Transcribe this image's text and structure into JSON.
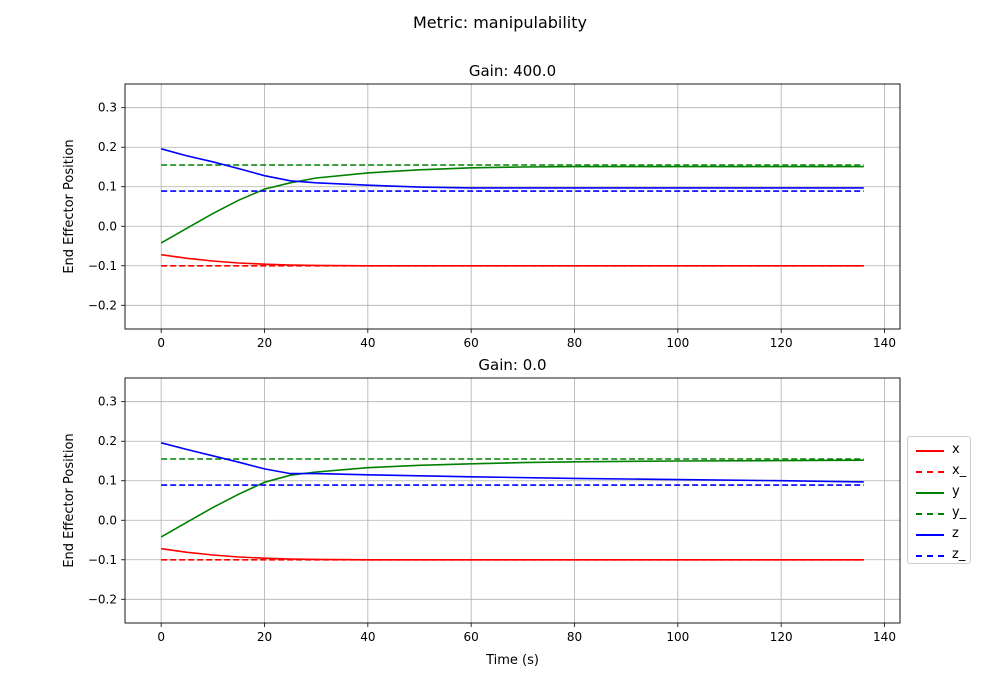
{
  "suptitle": "Metric: manipulability",
  "colors": {
    "x": "#ff0000",
    "y": "#008000",
    "z": "#0000ff",
    "grid": "#b0b0b0"
  },
  "legend": {
    "placement": "outside-right",
    "entries": [
      {
        "label": "x",
        "color": "#ff0000",
        "style": "solid"
      },
      {
        "label": "x_",
        "color": "#ff0000",
        "style": "dashed"
      },
      {
        "label": "y",
        "color": "#008000",
        "style": "solid"
      },
      {
        "label": "y_",
        "color": "#008000",
        "style": "dashed"
      },
      {
        "label": "z",
        "color": "#0000ff",
        "style": "solid"
      },
      {
        "label": "z_",
        "color": "#0000ff",
        "style": "dashed"
      }
    ]
  },
  "chart_data": [
    {
      "type": "line",
      "title": "Gain: 400.0",
      "xlabel": "",
      "ylabel": "End Effector Position",
      "xlim": [
        -7,
        143
      ],
      "ylim": [
        -0.26,
        0.36
      ],
      "xticks": [
        0,
        20,
        40,
        60,
        80,
        100,
        120,
        140
      ],
      "xtick_labels": [
        "0",
        "20",
        "40",
        "60",
        "80",
        "100",
        "120",
        "140"
      ],
      "yticks": [
        -0.2,
        -0.1,
        0.0,
        0.1,
        0.2,
        0.3
      ],
      "ytick_labels": [
        "−0.2",
        "−0.1",
        "0.0",
        "0.1",
        "0.2",
        "0.3"
      ],
      "grid": true,
      "series": [
        {
          "name": "x",
          "color": "#ff0000",
          "dashed": false,
          "x": [
            0,
            5,
            10,
            15,
            20,
            25,
            30,
            40,
            50,
            60,
            80,
            100,
            120,
            136
          ],
          "y": [
            -0.072,
            -0.081,
            -0.088,
            -0.093,
            -0.096,
            -0.098,
            -0.099,
            -0.1,
            -0.1,
            -0.1,
            -0.1,
            -0.1,
            -0.1,
            -0.1
          ]
        },
        {
          "name": "x_",
          "color": "#ff0000",
          "dashed": true,
          "x": [
            0,
            136
          ],
          "y": [
            -0.1,
            -0.1
          ]
        },
        {
          "name": "y",
          "color": "#008000",
          "dashed": false,
          "x": [
            0,
            5,
            10,
            15,
            20,
            25,
            30,
            40,
            50,
            60,
            70,
            80,
            100,
            120,
            136
          ],
          "y": [
            -0.042,
            -0.005,
            0.032,
            0.066,
            0.094,
            0.11,
            0.122,
            0.135,
            0.143,
            0.148,
            0.15,
            0.151,
            0.151,
            0.151,
            0.151
          ]
        },
        {
          "name": "y_",
          "color": "#008000",
          "dashed": true,
          "x": [
            0,
            136
          ],
          "y": [
            0.155,
            0.155
          ]
        },
        {
          "name": "z",
          "color": "#0000ff",
          "dashed": false,
          "x": [
            0,
            5,
            10,
            15,
            20,
            25,
            30,
            40,
            50,
            60,
            80,
            100,
            120,
            136
          ],
          "y": [
            0.196,
            0.178,
            0.163,
            0.146,
            0.128,
            0.115,
            0.11,
            0.104,
            0.099,
            0.097,
            0.097,
            0.097,
            0.097,
            0.097
          ]
        },
        {
          "name": "z_",
          "color": "#0000ff",
          "dashed": true,
          "x": [
            0,
            136
          ],
          "y": [
            0.089,
            0.089
          ]
        }
      ]
    },
    {
      "type": "line",
      "title": "Gain: 0.0",
      "xlabel": "Time (s)",
      "ylabel": "End Effector Position",
      "xlim": [
        -7,
        143
      ],
      "ylim": [
        -0.26,
        0.36
      ],
      "xticks": [
        0,
        20,
        40,
        60,
        80,
        100,
        120,
        140
      ],
      "xtick_labels": [
        "0",
        "20",
        "40",
        "60",
        "80",
        "100",
        "120",
        "140"
      ],
      "yticks": [
        -0.2,
        -0.1,
        0.0,
        0.1,
        0.2,
        0.3
      ],
      "ytick_labels": [
        "−0.2",
        "−0.1",
        "0.0",
        "0.1",
        "0.2",
        "0.3"
      ],
      "grid": true,
      "series": [
        {
          "name": "x",
          "color": "#ff0000",
          "dashed": false,
          "x": [
            0,
            5,
            10,
            15,
            20,
            25,
            30,
            40,
            50,
            60,
            80,
            100,
            120,
            136
          ],
          "y": [
            -0.072,
            -0.081,
            -0.088,
            -0.093,
            -0.096,
            -0.098,
            -0.099,
            -0.1,
            -0.1,
            -0.1,
            -0.1,
            -0.1,
            -0.1,
            -0.1
          ]
        },
        {
          "name": "x_",
          "color": "#ff0000",
          "dashed": true,
          "x": [
            0,
            136
          ],
          "y": [
            -0.1,
            -0.1
          ]
        },
        {
          "name": "y",
          "color": "#008000",
          "dashed": false,
          "x": [
            0,
            5,
            10,
            15,
            20,
            25,
            30,
            40,
            50,
            60,
            70,
            80,
            100,
            120,
            136
          ],
          "y": [
            -0.042,
            -0.005,
            0.032,
            0.066,
            0.096,
            0.114,
            0.122,
            0.133,
            0.139,
            0.143,
            0.146,
            0.148,
            0.15,
            0.151,
            0.152
          ]
        },
        {
          "name": "y_",
          "color": "#008000",
          "dashed": true,
          "x": [
            0,
            136
          ],
          "y": [
            0.155,
            0.155
          ]
        },
        {
          "name": "z",
          "color": "#0000ff",
          "dashed": false,
          "x": [
            0,
            5,
            10,
            15,
            20,
            25,
            30,
            40,
            60,
            80,
            100,
            120,
            136
          ],
          "y": [
            0.196,
            0.179,
            0.163,
            0.147,
            0.13,
            0.118,
            0.118,
            0.115,
            0.11,
            0.106,
            0.103,
            0.1,
            0.097
          ]
        },
        {
          "name": "z_",
          "color": "#0000ff",
          "dashed": true,
          "x": [
            0,
            136
          ],
          "y": [
            0.089,
            0.089
          ]
        }
      ]
    }
  ]
}
